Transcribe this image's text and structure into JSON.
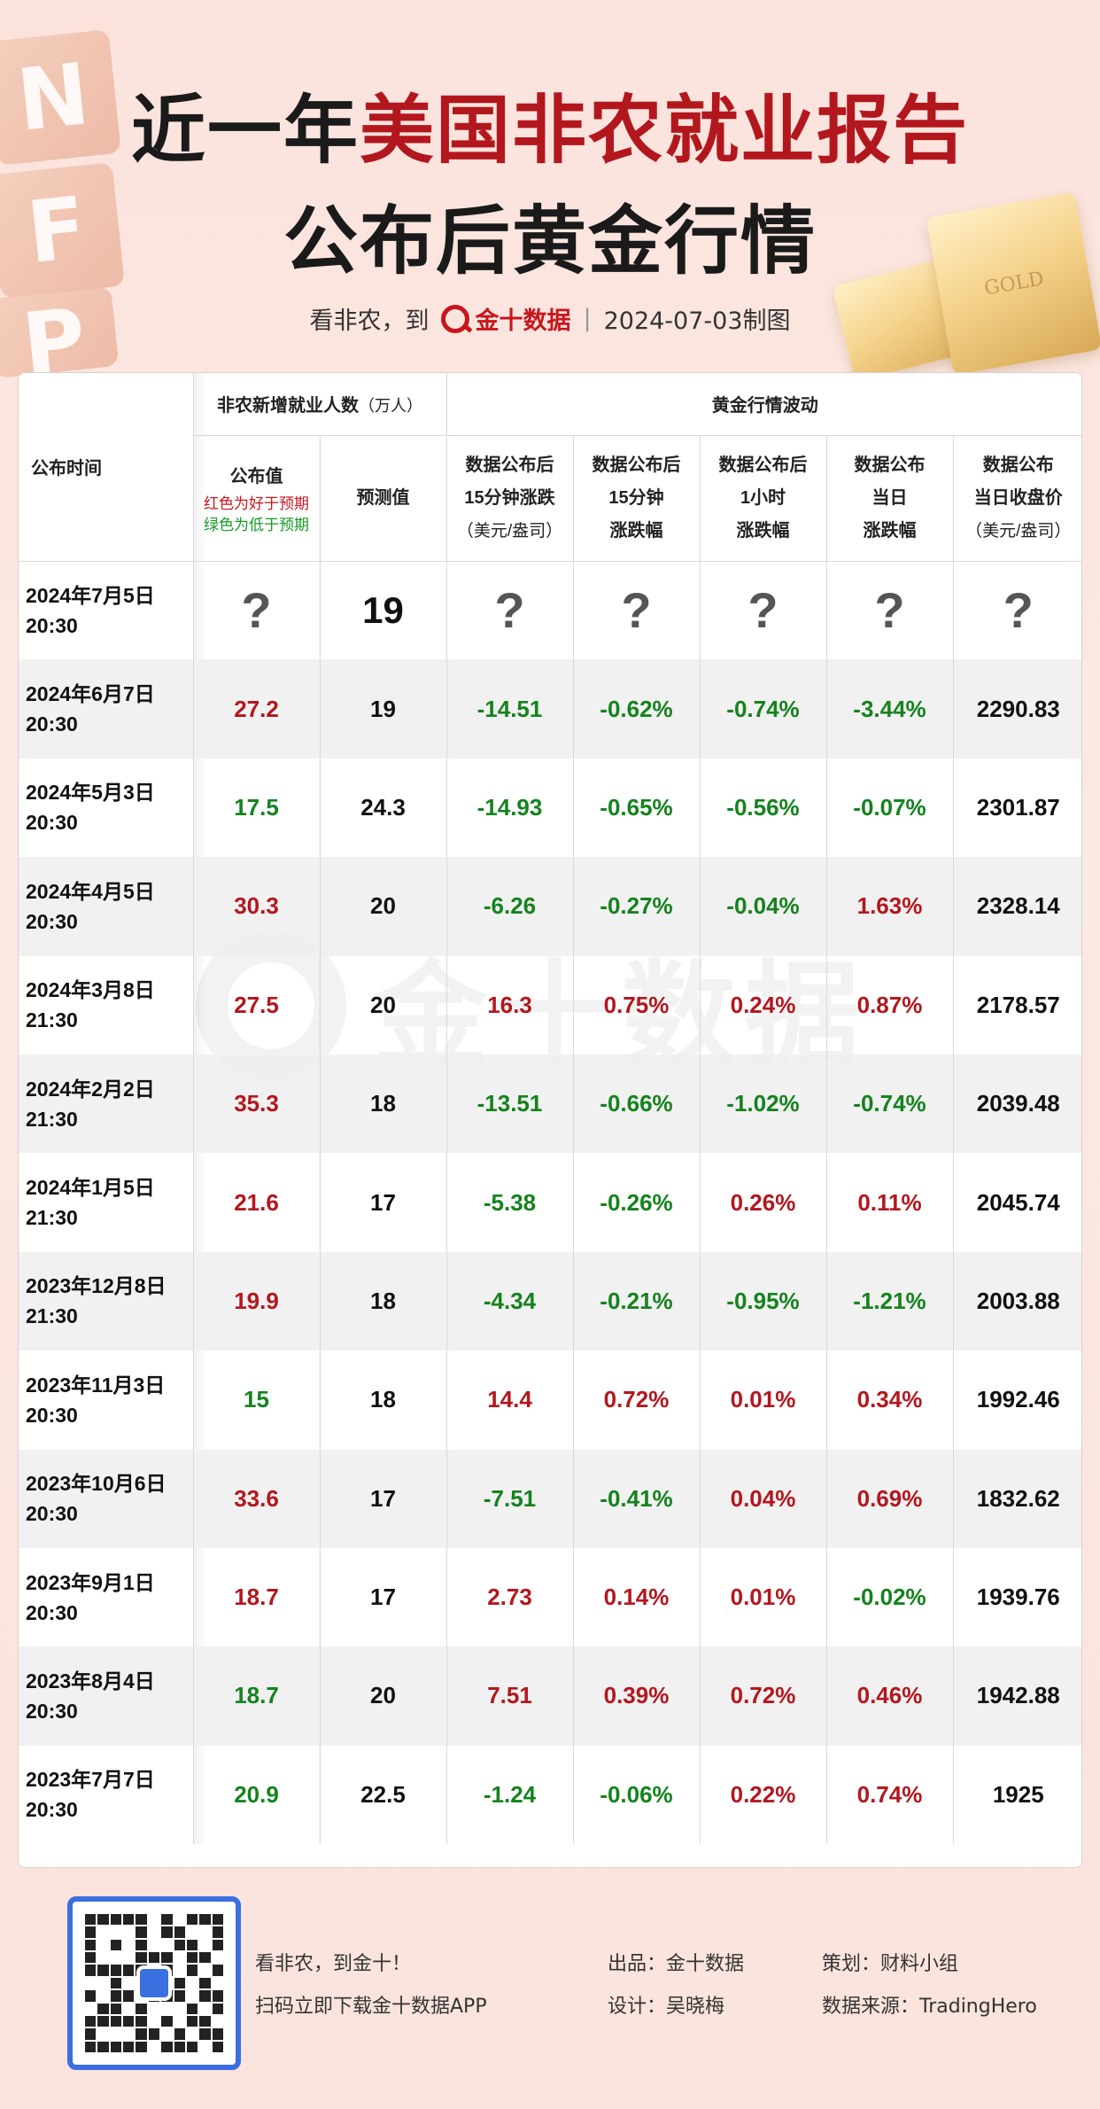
{
  "header": {
    "title_line1_prefix": "近一年",
    "title_line1_red": "美国非农就业报告",
    "title_line2": "公布后黄金行情",
    "tagline": "看非农，到",
    "brand": "金十数据",
    "made_date": "2024-07-03制图"
  },
  "decor": {
    "nfp_letters": [
      "N",
      "F",
      "P"
    ],
    "gold_bar_text": "GOLD"
  },
  "table": {
    "head": {
      "time": "公布时间",
      "nfp_group": "非农新增就业人数",
      "nfp_unit": "（万人）",
      "gold_group": "黄金行情波动",
      "actual": "公布值",
      "actual_note_red": "红色为好于预期",
      "actual_note_green": "绿色为低于预期",
      "forecast": "预测值",
      "c15_l1": "数据公布后",
      "c15_l2": "15分钟涨跌",
      "c15_l3": "（美元/盎司）",
      "p15_l1": "数据公布后",
      "p15_l2": "15分钟",
      "p15_l3": "涨跌幅",
      "p1h_l1": "数据公布后",
      "p1h_l2": "1小时",
      "p1h_l3": "涨跌幅",
      "day_l1": "数据公布",
      "day_l2": "当日",
      "day_l3": "涨跌幅",
      "close_l1": "数据公布",
      "close_l2": "当日收盘价",
      "close_l3": "（美元/盎司）"
    },
    "rows": [
      {
        "date": "2024年7月5日",
        "time": "20:30",
        "actual": "?",
        "forecast": "19",
        "chg15": "?",
        "pct15": "?",
        "pct1h": "?",
        "pctday": "?",
        "close": "?"
      },
      {
        "date": "2024年6月7日",
        "time": "20:30",
        "actual": "27.2",
        "forecast": "19",
        "chg15": "-14.51",
        "pct15": "-0.62%",
        "pct1h": "-0.74%",
        "pctday": "-3.44%",
        "close": "2290.83"
      },
      {
        "date": "2024年5月3日",
        "time": "20:30",
        "actual": "17.5",
        "forecast": "24.3",
        "chg15": "-14.93",
        "pct15": "-0.65%",
        "pct1h": "-0.56%",
        "pctday": "-0.07%",
        "close": "2301.87"
      },
      {
        "date": "2024年4月5日",
        "time": "20:30",
        "actual": "30.3",
        "forecast": "20",
        "chg15": "-6.26",
        "pct15": "-0.27%",
        "pct1h": "-0.04%",
        "pctday": "1.63%",
        "close": "2328.14"
      },
      {
        "date": "2024年3月8日",
        "time": "21:30",
        "actual": "27.5",
        "forecast": "20",
        "chg15": "16.3",
        "pct15": "0.75%",
        "pct1h": "0.24%",
        "pctday": "0.87%",
        "close": "2178.57"
      },
      {
        "date": "2024年2月2日",
        "time": "21:30",
        "actual": "35.3",
        "forecast": "18",
        "chg15": "-13.51",
        "pct15": "-0.66%",
        "pct1h": "-1.02%",
        "pctday": "-0.74%",
        "close": "2039.48"
      },
      {
        "date": "2024年1月5日",
        "time": "21:30",
        "actual": "21.6",
        "forecast": "17",
        "chg15": "-5.38",
        "pct15": "-0.26%",
        "pct1h": "0.26%",
        "pctday": "0.11%",
        "close": "2045.74"
      },
      {
        "date": "2023年12月8日",
        "time": "21:30",
        "actual": "19.9",
        "forecast": "18",
        "chg15": "-4.34",
        "pct15": "-0.21%",
        "pct1h": "-0.95%",
        "pctday": "-1.21%",
        "close": "2003.88"
      },
      {
        "date": "2023年11月3日",
        "time": "20:30",
        "actual": "15",
        "forecast": "18",
        "chg15": "14.4",
        "pct15": "0.72%",
        "pct1h": "0.01%",
        "pctday": "0.34%",
        "close": "1992.46"
      },
      {
        "date": "2023年10月6日",
        "time": "20:30",
        "actual": "33.6",
        "forecast": "17",
        "chg15": "-7.51",
        "pct15": "-0.41%",
        "pct1h": "0.04%",
        "pctday": "0.69%",
        "close": "1832.62"
      },
      {
        "date": "2023年9月1日",
        "time": "20:30",
        "actual": "18.7",
        "forecast": "17",
        "chg15": "2.73",
        "pct15": "0.14%",
        "pct1h": "0.01%",
        "pctday": "-0.02%",
        "close": "1939.76"
      },
      {
        "date": "2023年8月4日",
        "time": "20:30",
        "actual": "18.7",
        "forecast": "20",
        "chg15": "7.51",
        "pct15": "0.39%",
        "pct1h": "0.72%",
        "pctday": "0.46%",
        "close": "1942.88"
      },
      {
        "date": "2023年7月7日",
        "time": "20:30",
        "actual": "20.9",
        "forecast": "22.5",
        "chg15": "-1.24",
        "pct15": "-0.06%",
        "pct1h": "0.22%",
        "pctday": "0.74%",
        "close": "1925"
      }
    ],
    "actual_colors": [
      "q",
      "red",
      "green",
      "red",
      "red",
      "red",
      "red",
      "red",
      "green",
      "red",
      "red",
      "green",
      "green"
    ]
  },
  "watermark": {
    "text": "金十数据"
  },
  "footer": {
    "slogan1": "看非农，到金十！",
    "slogan2": "扫码立即下载金十数据APP",
    "producer": "出品：金十数据",
    "designer": "设计：吴晓梅",
    "planner": "策划：财料小组",
    "source": "数据来源：TradingHero",
    "qr_icon": "qr-code-icon"
  },
  "colors": {
    "up": "#b3171e",
    "down": "#14831d",
    "qr_border": "#3a6fe0"
  }
}
